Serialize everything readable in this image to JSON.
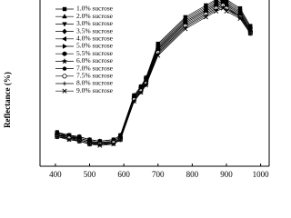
{
  "chart_data": {
    "type": "line",
    "y_label": "Reflectance (%)",
    "x": [
      405,
      440,
      470,
      500,
      530,
      570,
      590,
      630,
      650,
      665,
      700,
      780,
      840,
      870,
      890,
      900,
      940,
      970
    ],
    "xlim": [
      355,
      1025
    ],
    "xticks": [
      400,
      500,
      600,
      700,
      800,
      900,
      1000
    ],
    "ylim": [
      0,
      60
    ],
    "series": [
      {
        "name": "1.0% sucrose",
        "color": "#000000",
        "marker": "square",
        "values": [
          11.5,
          10.5,
          10,
          9,
          8.5,
          9,
          10.5,
          24,
          27,
          30,
          41.5,
          50.5,
          54.5,
          56.5,
          57.5,
          56.5,
          53.5,
          47.5
        ]
      },
      {
        "name": "2.0% sucrose",
        "color": "#000000",
        "marker": "triangle-up",
        "values": [
          11.5,
          10.5,
          10,
          9,
          8.5,
          9,
          10.5,
          24,
          27,
          30,
          41,
          50,
          54,
          56,
          57,
          56,
          53,
          47
        ]
      },
      {
        "name": "3.0% sucrose",
        "color": "#000000",
        "marker": "triangle-down",
        "values": [
          11,
          10.5,
          9.5,
          8.5,
          8,
          8.5,
          10,
          23.5,
          26.5,
          29.5,
          40.5,
          49.5,
          53.5,
          55.5,
          56.5,
          55.5,
          52.5,
          46.5
        ]
      },
      {
        "name": "3.5% sucrose",
        "color": "#000000",
        "marker": "diamond",
        "values": [
          11,
          10,
          9.5,
          8.5,
          8,
          8.5,
          10,
          23.5,
          26.5,
          29.5,
          40,
          49,
          53,
          55,
          56,
          55,
          52,
          46
        ]
      },
      {
        "name": "4.0% sucrose",
        "color": "#000000",
        "marker": "triangle-left",
        "values": [
          11,
          10,
          9.5,
          8.5,
          8,
          8.5,
          10,
          23,
          26,
          29,
          40,
          49,
          53,
          55,
          56,
          55,
          52,
          46
        ]
      },
      {
        "name": "5.0% sucrose",
        "color": "#000000",
        "marker": "triangle-right",
        "values": [
          10.5,
          10,
          9,
          8,
          8,
          8,
          9.5,
          23,
          26,
          29,
          39.5,
          48.5,
          52.5,
          54.5,
          55.5,
          54.5,
          51.5,
          45.5
        ]
      },
      {
        "name": "5.5% sucrose",
        "color": "#000000",
        "marker": "hexagon",
        "values": [
          10.5,
          10,
          9,
          8,
          7.5,
          8,
          9.5,
          23,
          26,
          28.5,
          39.5,
          48.5,
          52.5,
          54.5,
          55.5,
          54.5,
          51.5,
          45.5
        ]
      },
      {
        "name": "6.0% sucrose",
        "color": "#000000",
        "marker": "star",
        "values": [
          10.5,
          9.5,
          9,
          8,
          7.5,
          8,
          9.5,
          22.5,
          25.5,
          28.5,
          39,
          48,
          52,
          54,
          55,
          54,
          51,
          45.5
        ]
      },
      {
        "name": "7.0% sucrose",
        "color": "#000000",
        "marker": "circle",
        "values": [
          10.5,
          9.5,
          9,
          8,
          7.5,
          8,
          9.5,
          22.5,
          25.5,
          28,
          38.5,
          47.5,
          51.5,
          53.5,
          54.5,
          53.5,
          51,
          45.5
        ]
      },
      {
        "name": "7.5% sucrose",
        "color": "#000000",
        "marker": "half-circle",
        "values": [
          10,
          9.5,
          8.5,
          7.5,
          7.5,
          8,
          9,
          22.5,
          25.5,
          28,
          38.5,
          47.5,
          51.5,
          53.5,
          54.5,
          53.5,
          50.5,
          45
        ]
      },
      {
        "name": "8.0% sucrose",
        "color": "#000000",
        "marker": "plus",
        "values": [
          10,
          9,
          8.5,
          7.5,
          7.5,
          7.5,
          9,
          22,
          25,
          27.5,
          38,
          47,
          51,
          53,
          54,
          53,
          50.5,
          45
        ]
      },
      {
        "name": "9.0% sucrose",
        "color": "#000000",
        "marker": "cross",
        "values": [
          10,
          9,
          8.5,
          7.5,
          7,
          7.5,
          9,
          22,
          25,
          27.5,
          37.5,
          46.5,
          50.5,
          52.5,
          53.5,
          52.5,
          50,
          45
        ]
      }
    ]
  }
}
